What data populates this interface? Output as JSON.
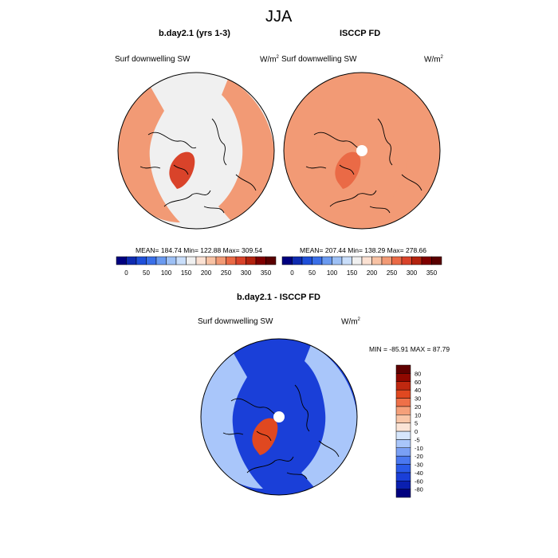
{
  "figure": {
    "title": "JJA",
    "colors": {
      "land_outline": "#000000",
      "missing": "#ffffff"
    }
  },
  "chart_data": [
    {
      "type": "polar-contour-map",
      "projection": "north-polar-stereographic",
      "title": "b.day2.1 (yrs 1-3)",
      "variable": "Surf downwelling SW",
      "units_base": "W/m",
      "units_exp": "2",
      "mean": "184.74",
      "min": "122.88",
      "max": "309.54",
      "stats_text": "MEAN= 184.74  Min= 122.88  Max= 309.54",
      "levels": [
        0,
        25,
        50,
        75,
        100,
        125,
        150,
        175,
        200,
        225,
        250,
        275,
        300,
        325,
        350
      ],
      "tick_labels": [
        "0",
        "50",
        "100",
        "150",
        "200",
        "250",
        "300",
        "350"
      ],
      "colors": [
        "#00007f",
        "#0f2bb0",
        "#1f4fd9",
        "#3a6fe8",
        "#6a9af0",
        "#9dc0f5",
        "#c9defa",
        "#f0f0f0",
        "#fbe1d2",
        "#f8c2a4",
        "#f29a75",
        "#ea6a46",
        "#d9432a",
        "#b3230f",
        "#7f0000",
        "#5a0000"
      ],
      "regions": [
        {
          "name": "polar-ocean",
          "value": 165
        },
        {
          "name": "mid-lat-land",
          "value": 235
        },
        {
          "name": "greenland",
          "value": 290
        }
      ]
    },
    {
      "type": "polar-contour-map",
      "projection": "north-polar-stereographic",
      "title": "ISCCP FD",
      "variable": "Surf downwelling SW",
      "units_base": "W/m",
      "units_exp": "2",
      "mean": "207.44",
      "min": "138.29",
      "max": "278.66",
      "stats_text": "MEAN= 207.44  Min= 138.29  Max= 278.66",
      "levels": [
        0,
        25,
        50,
        75,
        100,
        125,
        150,
        175,
        200,
        225,
        250,
        275,
        300,
        325,
        350
      ],
      "tick_labels": [
        "0",
        "50",
        "100",
        "150",
        "200",
        "250",
        "300",
        "350"
      ],
      "colors": [
        "#00007f",
        "#0f2bb0",
        "#1f4fd9",
        "#3a6fe8",
        "#6a9af0",
        "#9dc0f5",
        "#c9defa",
        "#f0f0f0",
        "#fbe1d2",
        "#f8c2a4",
        "#f29a75",
        "#ea6a46",
        "#d9432a",
        "#b3230f",
        "#7f0000",
        "#5a0000"
      ],
      "regions": [
        {
          "name": "polar-ocean",
          "value": 225
        },
        {
          "name": "mid-lat-land",
          "value": 240
        },
        {
          "name": "greenland",
          "value": 265
        }
      ]
    },
    {
      "type": "polar-contour-map",
      "projection": "north-polar-stereographic",
      "title": "b.day2.1 - ISCCP FD",
      "variable": "Surf downwelling SW",
      "units_base": "W/m",
      "units_exp": "2",
      "min": "-85.91",
      "max": "87.79",
      "stats_text": "MIN = -85.91 MAX =  87.79",
      "levels": [
        -80,
        -60,
        -40,
        -30,
        -20,
        -10,
        -5,
        0,
        5,
        10,
        20,
        30,
        40,
        60,
        80
      ],
      "tick_labels": [
        "-80",
        "-60",
        "-40",
        "-30",
        "-20",
        "-10",
        "-5",
        "0",
        "5",
        "10",
        "20",
        "30",
        "40",
        "60",
        "80"
      ],
      "colors": [
        "#00007f",
        "#0a1fb0",
        "#1a3fd8",
        "#2a5ae8",
        "#4a78f0",
        "#7aa0f5",
        "#a9c6fa",
        "#d6e6fc",
        "#fbe4d6",
        "#f9c6a8",
        "#f5a07a",
        "#ee7048",
        "#e04820",
        "#c02810",
        "#900800",
        "#600000"
      ],
      "regions": [
        {
          "name": "polar-ocean",
          "value": -45
        },
        {
          "name": "mid-lat-land",
          "value": -10
        },
        {
          "name": "greenland",
          "value": 35
        }
      ]
    }
  ]
}
